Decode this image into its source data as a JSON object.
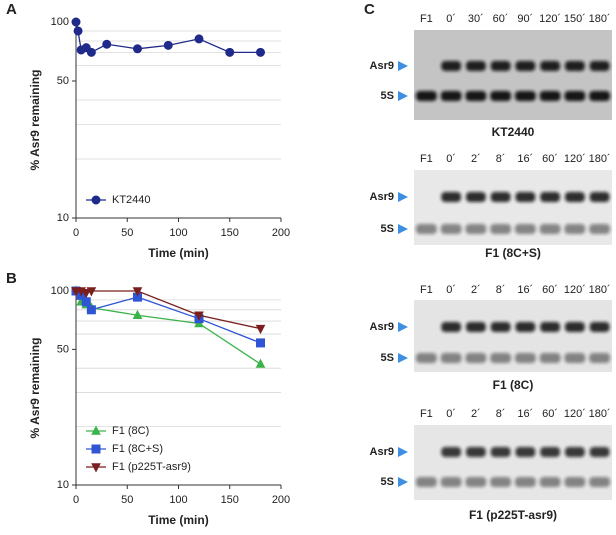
{
  "chart_data": [
    {
      "type": "line",
      "panel": "A",
      "y_label": "% Asr9 remaining",
      "x_label": "Time (min)",
      "x": [
        0,
        2,
        5,
        10,
        15,
        30,
        60,
        90,
        120,
        150,
        180
      ],
      "series": [
        {
          "name": "KT2440",
          "color": "#1f2a8a",
          "marker": "circle",
          "values": [
            100,
            90,
            72,
            74,
            70,
            77,
            73,
            76,
            82,
            70,
            70
          ]
        }
      ],
      "xlim": [
        0,
        200
      ],
      "xticks": [
        0,
        50,
        100,
        150,
        200
      ],
      "ylim": [
        10,
        100
      ],
      "yticks": [
        10,
        50,
        100
      ],
      "minor_yticks": [
        20,
        30,
        40,
        60,
        70,
        80,
        90
      ],
      "log_y": true,
      "grid": true,
      "legend": "lower left"
    },
    {
      "type": "line",
      "panel": "B",
      "y_label": "% Asr9 remaining",
      "x_label": "Time (min)",
      "x": [
        0,
        5,
        10,
        15,
        60,
        120,
        180
      ],
      "series": [
        {
          "name": "F1 (8C)",
          "color": "#3cb34a",
          "marker": "triangle",
          "values": [
            100,
            88,
            85,
            82,
            75,
            68,
            42
          ]
        },
        {
          "name": "F1 (8C+S)",
          "color": "#2f55d4",
          "marker": "square",
          "values": [
            100,
            95,
            88,
            80,
            93,
            72,
            54
          ]
        },
        {
          "name": "F1 (p225T-asr9)",
          "color": "#7a1f1f",
          "marker": "triangle-down",
          "values": [
            100,
            100,
            98,
            100,
            100,
            75,
            64
          ]
        }
      ],
      "xlim": [
        0,
        200
      ],
      "xticks": [
        0,
        50,
        100,
        150,
        200
      ],
      "ylim": [
        10,
        100
      ],
      "yticks": [
        10,
        50,
        100
      ],
      "minor_yticks": [
        20,
        30,
        40,
        60,
        70,
        80,
        90
      ],
      "log_y": true,
      "grid": true,
      "legend": "lower left"
    }
  ],
  "gels": {
    "panel": "C",
    "blots": [
      {
        "lanes": [
          "F1",
          "0´",
          "30´",
          "60´",
          "90´",
          "120´",
          "150´",
          "180´"
        ],
        "bands": [
          "Asr9",
          "5S"
        ],
        "caption": "KT2440"
      },
      {
        "lanes": [
          "F1",
          "0´",
          "2´",
          "8´",
          "16´",
          "60´",
          "120´",
          "180´"
        ],
        "bands": [
          "Asr9",
          "5S"
        ],
        "caption": "F1 (8C+S)"
      },
      {
        "lanes": [
          "F1",
          "0´",
          "2´",
          "8´",
          "16´",
          "60´",
          "120´",
          "180´"
        ],
        "bands": [
          "Asr9",
          "5S"
        ],
        "caption": "F1 (8C)"
      },
      {
        "lanes": [
          "F1",
          "0´",
          "2´",
          "8´",
          "16´",
          "60´",
          "120´",
          "180´"
        ],
        "bands": [
          "Asr9",
          "5S"
        ],
        "caption": "F1 (p225T-asr9)"
      }
    ]
  }
}
